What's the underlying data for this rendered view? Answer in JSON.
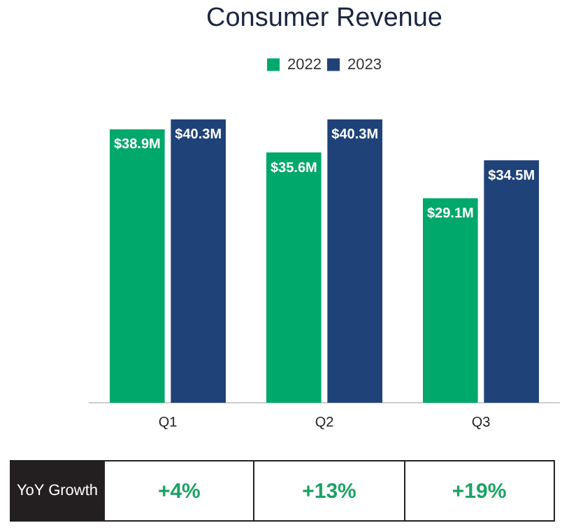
{
  "chart_data": {
    "type": "bar",
    "title": "Consumer Revenue",
    "categories": [
      "Q1",
      "Q2",
      "Q3"
    ],
    "series": [
      {
        "name": "2022",
        "color": "#00a86b",
        "values": [
          38.9,
          35.6,
          29.1
        ],
        "value_labels": [
          "$38.9M",
          "$35.6M",
          "$29.1M"
        ]
      },
      {
        "name": "2023",
        "color": "#1f4278",
        "values": [
          40.3,
          40.3,
          34.5
        ],
        "value_labels": [
          "$40.3M",
          "$40.3M",
          "$34.5M"
        ]
      }
    ],
    "grid": false,
    "legend": "top",
    "annotations": [
      "YoY Growth",
      "+4%",
      "+13%",
      "+19%"
    ]
  }
}
